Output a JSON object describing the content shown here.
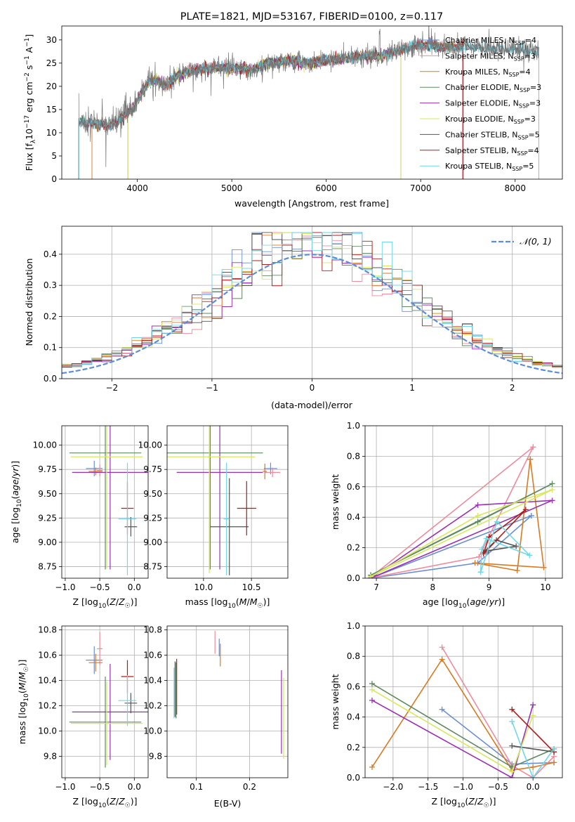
{
  "title": "PLATE=1821, MJD=53167, FIBERID=0100, z=0.117",
  "colors": {
    "chabrier_miles": "#6a8fd6",
    "salpeter_miles": "#f08a9c",
    "kroupa_miles": "#d97a20",
    "chabrier_elodie": "#5e8a60",
    "salpeter_elodie": "#9b2fb5",
    "kroupa_elodie": "#d7e85e",
    "chabrier_stelib": "#555555",
    "salpeter_stelib": "#b01c1c",
    "kroupa_stelib": "#6fd8e8",
    "data": "#777777",
    "normal": "#5b8dd9"
  },
  "legend_spectrum": [
    "Chabrier MILES, N$_{SSP}$=4",
    "Salpeter MILES, N$_{SSP}$=3",
    "Kroupa MILES, N$_{SSP}$=4",
    "Chabrier ELODIE, N$_{SSP}$=3",
    "Salpeter ELODIE, N$_{SSP}$=3",
    "Kroupa ELODIE, N$_{SSP}$=3",
    "Chabrier STELIB, N$_{SSP}$=5",
    "Salpeter STELIB, N$_{SSP}$=4",
    "Kroupa STELIB, N$_{SSP}$=5"
  ],
  "legend_spectrum_text": {
    "base": [
      "Chabrier MILES, N",
      "Salpeter MILES, N",
      "Kroupa MILES, N",
      "Chabrier ELODIE, N",
      "Salpeter ELODIE, N",
      "Kroupa ELODIE, N",
      "Chabrier STELIB, N",
      "Salpeter STELIB, N",
      "Kroupa STELIB, N"
    ],
    "sub": "SSP",
    "vals": [
      "=4",
      "=3",
      "=4",
      "=3",
      "=3",
      "=3",
      "=5",
      "=4",
      "=5"
    ]
  },
  "legend_hist": "𝒩(0, 1)",
  "chart_data": [
    {
      "id": "spectrum",
      "type": "line",
      "title": "PLATE=1821, MJD=53167, FIBERID=0100, z=0.117",
      "xlabel": "wavelength [Angstrom, rest frame]",
      "ylabel_parts": [
        "Flux [f",
        "λ",
        "10",
        "−17",
        " erg cm",
        "−2",
        " s",
        "−1",
        " A",
        "−1",
        "]"
      ],
      "xlim": [
        3200,
        8500
      ],
      "ylim": [
        0,
        33
      ],
      "xticks": [
        4000,
        5000,
        6000,
        7000,
        8000
      ],
      "yticks": [
        0,
        5,
        10,
        15,
        20,
        25,
        30
      ],
      "continuum_anchors": [
        [
          3380,
          12.5
        ],
        [
          3550,
          12.0
        ],
        [
          3700,
          11.5
        ],
        [
          3800,
          12.5
        ],
        [
          3950,
          15.5
        ],
        [
          4000,
          17.0
        ],
        [
          4100,
          20.5
        ],
        [
          4200,
          21.5
        ],
        [
          4300,
          20.0
        ],
        [
          4400,
          22.0
        ],
        [
          4600,
          23.5
        ],
        [
          4800,
          24.0
        ],
        [
          5000,
          24.0
        ],
        [
          5200,
          23.5
        ],
        [
          5400,
          25.0
        ],
        [
          5600,
          25.5
        ],
        [
          5800,
          25.0
        ],
        [
          6000,
          25.5
        ],
        [
          6200,
          26.0
        ],
        [
          6400,
          26.5
        ],
        [
          6600,
          26.5
        ],
        [
          6800,
          28.0
        ],
        [
          7000,
          29.0
        ],
        [
          7200,
          28.5
        ],
        [
          7500,
          28.5
        ],
        [
          7800,
          28.0
        ],
        [
          8000,
          28.0
        ],
        [
          8200,
          27.5
        ]
      ],
      "model_edges": [
        [
          3380,
          7450
        ],
        [
          3520,
          7440
        ],
        [
          3520,
          7450
        ],
        [
          3380,
          7450
        ],
        [
          3900,
          6790
        ],
        [
          3900,
          6790
        ],
        [
          3380,
          8250
        ],
        [
          3380,
          7450
        ],
        [
          3380,
          8250
        ]
      ]
    },
    {
      "id": "residual-histogram",
      "type": "histogram",
      "xlabel": "(data-model)/error",
      "ylabel": "Normed distribution",
      "xlim": [
        -2.5,
        2.5
      ],
      "ylim": [
        0,
        0.49
      ],
      "xticks": [
        -2,
        -1,
        0,
        1,
        2
      ],
      "yticks": [
        0.0,
        0.1,
        0.2,
        0.3,
        0.4
      ],
      "bin_width": 0.1,
      "normal_curve": {
        "mu": 0,
        "sigma": 1
      }
    },
    {
      "id": "age-vs-metallicity",
      "type": "errorbar",
      "xlabel": "Z [log10(Z/Z☉)]",
      "ylabel": "age  [log10(age/yr)]",
      "xlim": [
        -1.05,
        0.2
      ],
      "ylim": [
        8.63,
        10.2
      ],
      "xticks": [
        -1.0,
        -0.5,
        0.0
      ],
      "yticks": [
        8.75,
        9.0,
        9.25,
        9.5,
        9.75,
        10.0
      ],
      "points": [
        {
          "model": "chabrier_miles",
          "x": -0.58,
          "xerr": 0.12,
          "y": 9.76,
          "yerr": 0.08
        },
        {
          "model": "salpeter_miles",
          "x": -0.5,
          "xerr": 0.04,
          "y": 9.74,
          "yerr": 0.06
        },
        {
          "model": "kroupa_miles",
          "x": -0.56,
          "xerr": 0.1,
          "y": 9.73,
          "yerr": 0.04
        },
        {
          "model": "chabrier_elodie",
          "x": -0.42,
          "xerr": 0.52,
          "y": 9.92,
          "yerr": 1.2
        },
        {
          "model": "salpeter_elodie",
          "x": -0.35,
          "xerr": 0.55,
          "y": 9.72,
          "yerr": 1.0
        },
        {
          "model": "kroupa_elodie",
          "x": -0.4,
          "xerr": 0.52,
          "y": 9.88,
          "yerr": 1.15
        },
        {
          "model": "chabrier_stelib",
          "x": -0.05,
          "xerr": 0.09,
          "y": 9.16,
          "yerr": 0.1
        },
        {
          "model": "salpeter_stelib",
          "x": -0.1,
          "xerr": 0.09,
          "y": 9.35,
          "yerr": 0.27
        },
        {
          "model": "kroupa_stelib",
          "x": -0.1,
          "xerr": 0.13,
          "y": 9.24,
          "yerr": 0.58
        }
      ]
    },
    {
      "id": "age-vs-mass",
      "type": "errorbar",
      "xlabel": "mass [log10(M/M☉)]",
      "ylabel": "",
      "xlim": [
        9.62,
        10.88
      ],
      "ylim": [
        8.63,
        10.2
      ],
      "xticks": [
        10.0,
        10.5
      ],
      "yticks": [
        8.75,
        9.0,
        9.25,
        9.5,
        9.75,
        10.0
      ],
      "points": [
        {
          "model": "chabrier_miles",
          "x": 10.7,
          "xerr": 0.07,
          "y": 9.76,
          "yerr": 0.06
        },
        {
          "model": "salpeter_miles",
          "x": 10.72,
          "xerr": 0.08,
          "y": 9.72,
          "yerr": 0.05
        },
        {
          "model": "kroupa_miles",
          "x": 10.64,
          "xerr": 0.02,
          "y": 9.73,
          "yerr": 0.08
        },
        {
          "model": "chabrier_elodie",
          "x": 10.07,
          "xerr": 0.55,
          "y": 9.92,
          "yerr": 1.2
        },
        {
          "model": "salpeter_elodie",
          "x": 10.17,
          "xerr": 0.45,
          "y": 9.72,
          "yerr": 1.0
        },
        {
          "model": "kroupa_elodie",
          "x": 10.06,
          "xerr": 0.48,
          "y": 9.88,
          "yerr": 1.2
        },
        {
          "model": "chabrier_stelib",
          "x": 10.27,
          "xerr": 0.2,
          "y": 9.16,
          "yerr": 0.5
        },
        {
          "model": "salpeter_stelib",
          "x": 10.45,
          "xerr": 0.1,
          "y": 9.35,
          "yerr": 0.28
        },
        {
          "model": "kroupa_stelib",
          "x": 10.24,
          "xerr": 0.03,
          "y": 9.24,
          "yerr": 0.58
        }
      ]
    },
    {
      "id": "mass-weight-vs-age",
      "type": "line",
      "xlabel": "age  [log10(age/yr)]",
      "ylabel": "mass weight",
      "xlim": [
        6.8,
        10.3
      ],
      "ylim": [
        0,
        1
      ],
      "xticks": [
        7,
        8,
        9,
        10
      ],
      "yticks": [
        0.0,
        0.2,
        0.4,
        0.6,
        0.8,
        1.0
      ],
      "series": [
        {
          "model": "chabrier_miles",
          "x": [
            9.75,
            8.8,
            6.9,
            9.75
          ],
          "y": [
            0.41,
            0.1,
            0.0,
            0.41
          ]
        },
        {
          "model": "salpeter_miles",
          "x": [
            9.78,
            8.82,
            6.88,
            9.78
          ],
          "y": [
            0.86,
            0.14,
            0.0,
            0.86
          ]
        },
        {
          "model": "kroupa_miles",
          "x": [
            9.73,
            9.97,
            8.75,
            9.5,
            9.73
          ],
          "y": [
            0.78,
            0.07,
            0.1,
            0.05,
            0.78
          ]
        },
        {
          "model": "chabrier_elodie",
          "x": [
            6.9,
            10.12,
            8.8,
            6.9
          ],
          "y": [
            0.02,
            0.62,
            0.37,
            0.02
          ]
        },
        {
          "model": "salpeter_elodie",
          "x": [
            6.9,
            8.8,
            10.12,
            6.9
          ],
          "y": [
            0.0,
            0.48,
            0.51,
            0.0
          ]
        },
        {
          "model": "kroupa_elodie",
          "x": [
            6.9,
            10.12,
            8.8,
            6.9
          ],
          "y": [
            0.01,
            0.58,
            0.41,
            0.01
          ]
        },
        {
          "model": "chabrier_stelib",
          "x": [
            8.9,
            9.13,
            9.48,
            8.98,
            8.95,
            8.9
          ],
          "y": [
            0.17,
            0.25,
            0.21,
            0.18,
            0.17,
            0.17
          ]
        },
        {
          "model": "salpeter_stelib",
          "x": [
            9.0,
            9.65,
            8.9,
            9.0
          ],
          "y": [
            0.27,
            0.45,
            0.16,
            0.27
          ]
        },
        {
          "model": "kroupa_stelib",
          "x": [
            8.85,
            9.14,
            9.72,
            8.95,
            8.87,
            8.85
          ],
          "y": [
            0.04,
            0.37,
            0.15,
            0.26,
            0.19,
            0.04
          ]
        }
      ]
    },
    {
      "id": "mass-vs-metallicity",
      "type": "errorbar",
      "xlabel": "Z [log10(Z/Z☉)]",
      "ylabel": "mass [log10(M/M☉)]",
      "xlim": [
        -1.05,
        0.2
      ],
      "ylim": [
        9.63,
        10.83
      ],
      "xticks": [
        -1.0,
        -0.5,
        0.0
      ],
      "yticks": [
        9.8,
        10.0,
        10.2,
        10.4,
        10.6,
        10.8
      ],
      "points": [
        {
          "model": "chabrier_miles",
          "x": -0.58,
          "xerr": 0.12,
          "y": 10.56,
          "yerr": 0.11
        },
        {
          "model": "salpeter_miles",
          "x": -0.5,
          "xerr": 0.04,
          "y": 10.65,
          "yerr": 0.13
        },
        {
          "model": "kroupa_miles",
          "x": -0.56,
          "xerr": 0.1,
          "y": 10.54,
          "yerr": 0.07
        },
        {
          "model": "chabrier_elodie",
          "x": -0.42,
          "xerr": 0.52,
          "y": 10.07,
          "yerr": 0.36
        },
        {
          "model": "salpeter_elodie",
          "x": -0.35,
          "xerr": 0.55,
          "y": 10.15,
          "yerr": 0.38
        },
        {
          "model": "kroupa_elodie",
          "x": -0.4,
          "xerr": 0.52,
          "y": 10.06,
          "yerr": 0.33
        },
        {
          "model": "chabrier_stelib",
          "x": -0.05,
          "xerr": 0.09,
          "y": 10.22,
          "yerr": 0.08
        },
        {
          "model": "salpeter_stelib",
          "x": -0.1,
          "xerr": 0.09,
          "y": 10.43,
          "yerr": 0.13
        },
        {
          "model": "kroupa_stelib",
          "x": -0.1,
          "xerr": 0.13,
          "y": 10.24,
          "yerr": 0.2
        }
      ]
    },
    {
      "id": "mass-vs-extinction",
      "type": "errorbar",
      "xlabel": "E(B-V)",
      "ylabel": "",
      "xlim": [
        0.045,
        0.272
      ],
      "ylim": [
        9.63,
        10.83
      ],
      "xticks": [
        0.1,
        0.2
      ],
      "yticks": [
        9.8,
        10.0,
        10.2,
        10.4,
        10.6,
        10.8
      ],
      "points": [
        {
          "model": "chabrier_miles",
          "x": 0.143,
          "xerr": 0,
          "y": 10.66,
          "yerr": 0.07
        },
        {
          "model": "salpeter_miles",
          "x": 0.135,
          "xerr": 0,
          "y": 10.7,
          "yerr": 0.09
        },
        {
          "model": "kroupa_miles",
          "x": 0.145,
          "xerr": 0,
          "y": 10.6,
          "yerr": 0.09
        },
        {
          "model": "chabrier_elodie",
          "x": 0.062,
          "xerr": 0,
          "y": 10.32,
          "yerr": 0.22
        },
        {
          "model": "salpeter_elodie",
          "x": 0.26,
          "xerr": 0,
          "y": 10.15,
          "yerr": 0.33
        },
        {
          "model": "kroupa_elodie",
          "x": 0.264,
          "xerr": 0,
          "y": 10.1,
          "yerr": 0.32
        },
        {
          "model": "chabrier_stelib",
          "x": 0.06,
          "xerr": 0,
          "y": 10.33,
          "yerr": 0.22
        },
        {
          "model": "salpeter_stelib",
          "x": 0.063,
          "xerr": 0,
          "y": 10.35,
          "yerr": 0.22
        },
        {
          "model": "kroupa_stelib",
          "x": 0.058,
          "xerr": 0,
          "y": 10.3,
          "yerr": 0.2
        }
      ]
    },
    {
      "id": "mass-weight-vs-metallicity",
      "type": "line",
      "xlabel": "Z [log10(Z/Z☉)]",
      "ylabel": "mass weight",
      "xlim": [
        -2.4,
        0.42
      ],
      "ylim": [
        0,
        1
      ],
      "xticks": [
        -2.0,
        -1.5,
        -1.0,
        -0.5,
        0.0
      ],
      "yticks": [
        0.0,
        0.2,
        0.4,
        0.6,
        0.8,
        1.0
      ],
      "series": [
        {
          "model": "chabrier_miles",
          "x": [
            -1.3,
            -0.3,
            0.3
          ],
          "y": [
            0.45,
            0.09,
            0.1
          ]
        },
        {
          "model": "salpeter_miles",
          "x": [
            -1.3,
            -0.3,
            0.0,
            0.3
          ],
          "y": [
            0.86,
            0.08,
            0.0,
            0.14
          ]
        },
        {
          "model": "kroupa_miles",
          "x": [
            -2.3,
            -1.3,
            -0.3,
            0.0,
            0.3
          ],
          "y": [
            0.07,
            0.78,
            0.05,
            0.07,
            0.1
          ]
        },
        {
          "model": "chabrier_elodie",
          "x": [
            -2.3,
            -0.3,
            0.3
          ],
          "y": [
            0.62,
            0.07,
            0.19
          ]
        },
        {
          "model": "salpeter_elodie",
          "x": [
            -2.3,
            -0.3,
            0.0
          ],
          "y": [
            0.51,
            0.0,
            0.48
          ]
        },
        {
          "model": "kroupa_elodie",
          "x": [
            -2.3,
            -0.3,
            0.0
          ],
          "y": [
            0.58,
            0.04,
            0.41
          ]
        },
        {
          "model": "chabrier_stelib",
          "x": [
            -0.3,
            0.3
          ],
          "y": [
            0.21,
            0.17
          ]
        },
        {
          "model": "salpeter_stelib",
          "x": [
            -0.3,
            0.3
          ],
          "y": [
            0.45,
            0.17
          ]
        },
        {
          "model": "kroupa_stelib",
          "x": [
            -0.3,
            0.0,
            0.3
          ],
          "y": [
            0.37,
            0.0,
            0.19
          ]
        }
      ]
    }
  ]
}
